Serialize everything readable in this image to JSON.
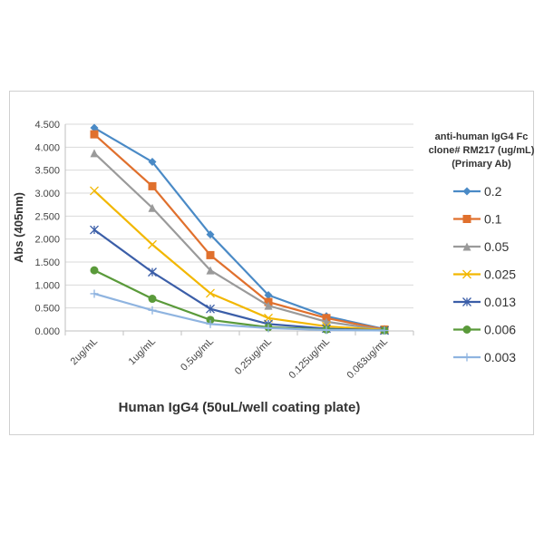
{
  "chart_data": {
    "type": "line",
    "xlabel": "Human IgG4 (50uL/well coating plate)",
    "ylabel": "Abs (405nm)",
    "ylim": [
      0,
      4.5
    ],
    "yticks": [
      "0.000",
      "0.500",
      "1.000",
      "1.500",
      "2.000",
      "2.500",
      "3.000",
      "3.500",
      "4.000",
      "4.500"
    ],
    "grid": true,
    "legend_position": "right",
    "legend_title": [
      "anti-human IgG4 Fc",
      "clone# RM217 (ug/mL)",
      "(Primary Ab)"
    ],
    "categories": [
      "2ug/mL",
      "1ug/mL",
      "0.5ug/mL",
      "0.25ug/mL",
      "0.125ug/mL",
      "0.063ug/mL"
    ],
    "series": [
      {
        "name": "0.2",
        "color": "#4a8ac6",
        "marker": "diamond",
        "values": [
          4.42,
          3.68,
          2.1,
          0.78,
          0.32,
          0.04
        ]
      },
      {
        "name": "0.1",
        "color": "#e0702d",
        "marker": "square",
        "values": [
          4.28,
          3.15,
          1.65,
          0.63,
          0.28,
          0.03
        ]
      },
      {
        "name": "0.05",
        "color": "#9a9a9a",
        "marker": "triangle",
        "values": [
          3.87,
          2.68,
          1.32,
          0.55,
          0.2,
          0.02
        ]
      },
      {
        "name": "0.025",
        "color": "#f2b700",
        "marker": "x",
        "values": [
          3.05,
          1.88,
          0.82,
          0.28,
          0.1,
          0.02
        ]
      },
      {
        "name": "0.013",
        "color": "#3b5ea8",
        "marker": "asterisk",
        "values": [
          2.2,
          1.28,
          0.48,
          0.15,
          0.05,
          0.01
        ]
      },
      {
        "name": "0.006",
        "color": "#5a9a3a",
        "marker": "circle",
        "values": [
          1.32,
          0.7,
          0.24,
          0.08,
          0.03,
          0.01
        ]
      },
      {
        "name": "0.003",
        "color": "#8fb4e0",
        "marker": "plus",
        "values": [
          0.81,
          0.45,
          0.15,
          0.06,
          0.02,
          0.01
        ]
      }
    ]
  }
}
